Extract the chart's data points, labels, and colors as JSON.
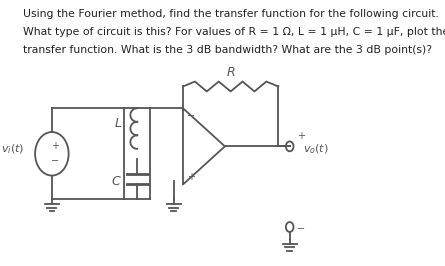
{
  "background_color": "#ffffff",
  "text_lines": [
    "Using the Fourier method, find the transfer function for the following circuit.",
    "What type of circuit is this? For values of R = 1 Ω, L = 1 μH, C = 1 μF, plot the",
    "transfer function. What is the 3 dB bandwidth? What are the 3 dB point(s)?"
  ],
  "text_fontsize": 7.8,
  "circuit_color": "#555555",
  "label_fontsize": 8.5
}
